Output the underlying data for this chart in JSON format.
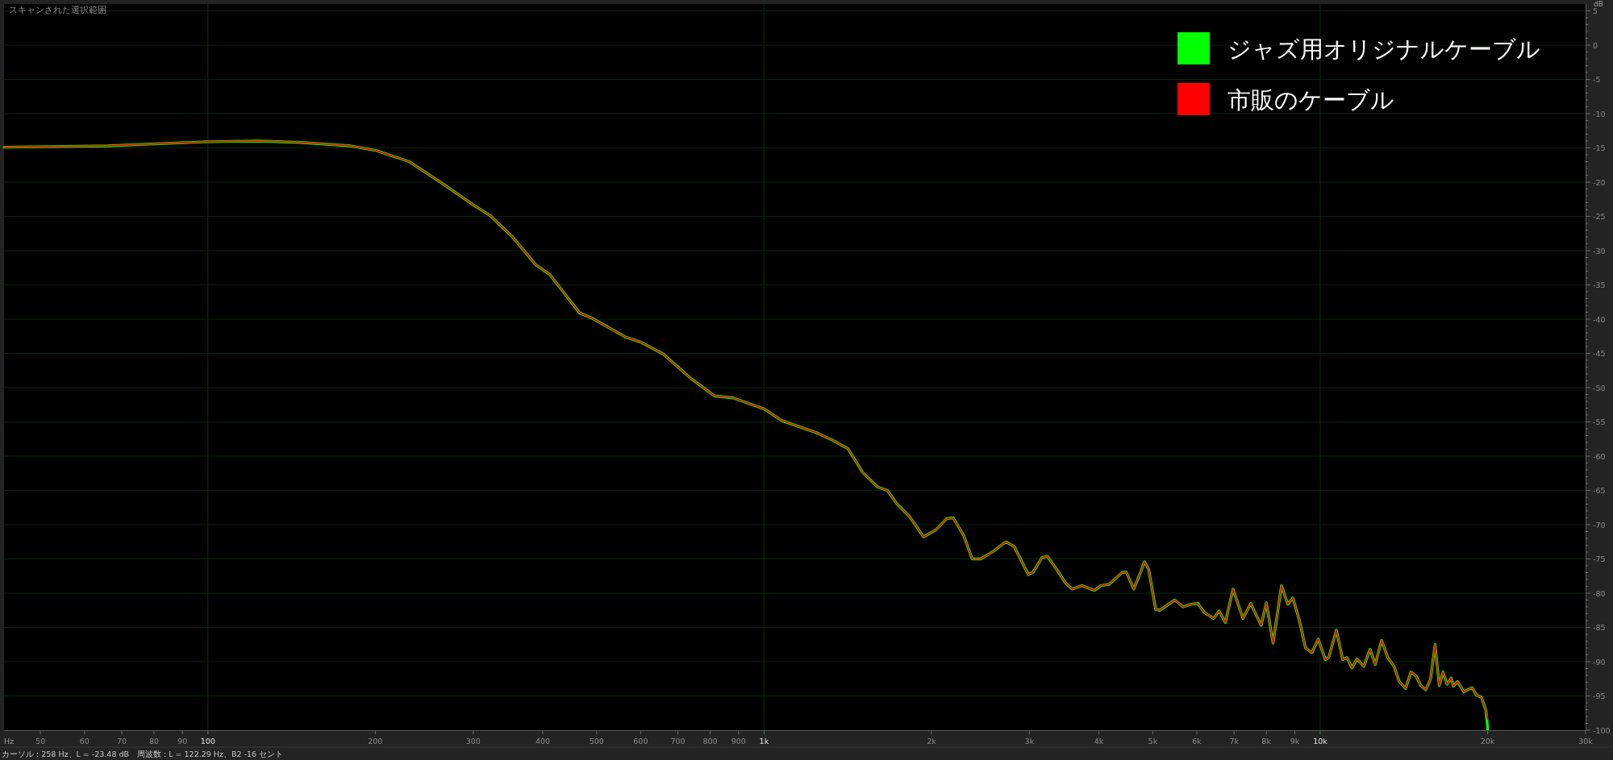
{
  "chart_data": {
    "type": "line",
    "title": "スキャンされた選択範囲",
    "xlabel": "Hz",
    "ylabel": "dB",
    "log": "x",
    "grid": true,
    "legend": "top right",
    "annotations": [
      "カーソル : 258 Hz、L = -23.48 dB　周波数 : L = 122.29 Hz、B2 -16 セント"
    ],
    "xlim": [
      43,
      30000
    ],
    "ylim": [
      -100,
      6
    ],
    "xticks": [
      50,
      60,
      70,
      80,
      90,
      100,
      200,
      300,
      400,
      500,
      600,
      700,
      800,
      900,
      {
        "value": 1000,
        "label": "1k"
      },
      {
        "value": 2000,
        "label": "2k"
      },
      {
        "value": 3000,
        "label": "3k"
      },
      {
        "value": 4000,
        "label": "4k"
      },
      {
        "value": 5000,
        "label": "5k"
      },
      {
        "value": 6000,
        "label": "6k"
      },
      {
        "value": 7000,
        "label": "7k"
      },
      {
        "value": 8000,
        "label": "8k"
      },
      {
        "value": 9000,
        "label": "9k"
      },
      {
        "value": 10000,
        "label": "10k"
      },
      {
        "value": 20000,
        "label": "20k"
      },
      {
        "value": 30000,
        "label": "30k"
      }
    ],
    "yticks": [
      -100,
      {
        "value": -99,
        "label": null
      },
      {
        "value": -98,
        "label": null
      },
      {
        "value": -97,
        "label": null
      },
      {
        "value": -96,
        "label": null
      },
      -95,
      {
        "value": -94,
        "label": null
      },
      {
        "value": -93,
        "label": null
      },
      {
        "value": -92,
        "label": null
      },
      {
        "value": -91,
        "label": null
      },
      -90,
      {
        "value": -89,
        "label": null
      },
      {
        "value": -88,
        "label": null
      },
      {
        "value": -87,
        "label": null
      },
      {
        "value": -86,
        "label": null
      },
      -85,
      {
        "value": -84,
        "label": null
      },
      {
        "value": -83,
        "label": null
      },
      {
        "value": -82,
        "label": null
      },
      {
        "value": -81,
        "label": null
      },
      -80,
      {
        "value": -79,
        "label": null
      },
      {
        "value": -78,
        "label": null
      },
      {
        "value": -77,
        "label": null
      },
      {
        "value": -76,
        "label": null
      },
      -75,
      {
        "value": -74,
        "label": null
      },
      {
        "value": -73,
        "label": null
      },
      {
        "value": -72,
        "label": null
      },
      {
        "value": -71,
        "label": null
      },
      -70,
      {
        "value": -69,
        "label": null
      },
      {
        "value": -68,
        "label": null
      },
      {
        "value": -67,
        "label": null
      },
      {
        "value": -66,
        "label": null
      },
      -65,
      {
        "value": -64,
        "label": null
      },
      {
        "value": -63,
        "label": null
      },
      {
        "value": -62,
        "label": null
      },
      {
        "value": -61,
        "label": null
      },
      -60,
      {
        "value": -59,
        "label": null
      },
      {
        "value": -58,
        "label": null
      },
      {
        "value": -57,
        "label": null
      },
      {
        "value": -56,
        "label": null
      },
      -55,
      {
        "value": -54,
        "label": null
      },
      {
        "value": -53,
        "label": null
      },
      {
        "value": -52,
        "label": null
      },
      {
        "value": -51,
        "label": null
      },
      -50,
      {
        "value": -49,
        "label": null
      },
      {
        "value": -48,
        "label": null
      },
      {
        "value": -47,
        "label": null
      },
      {
        "value": -46,
        "label": null
      },
      -45,
      {
        "value": -44,
        "label": null
      },
      {
        "value": -43,
        "label": null
      },
      {
        "value": -42,
        "label": null
      },
      {
        "value": -41,
        "label": null
      },
      -40,
      {
        "value": -39,
        "label": null
      },
      {
        "value": -38,
        "label": null
      },
      {
        "value": -37,
        "label": null
      },
      {
        "value": -36,
        "label": null
      },
      -35,
      {
        "value": -34,
        "label": null
      },
      {
        "value": -33,
        "label": null
      },
      {
        "value": -32,
        "label": null
      },
      {
        "value": -31,
        "label": null
      },
      -30,
      {
        "value": -29,
        "label": null
      },
      {
        "value": -28,
        "label": null
      },
      {
        "value": -27,
        "label": null
      },
      {
        "value": -26,
        "label": null
      },
      -25,
      {
        "value": -24,
        "label": null
      },
      {
        "value": -23,
        "label": null
      },
      {
        "value": -22,
        "label": null
      },
      {
        "value": -21,
        "label": null
      },
      -20,
      {
        "value": -19,
        "label": null
      },
      {
        "value": -18,
        "label": null
      },
      {
        "value": -17,
        "label": null
      },
      {
        "value": -16,
        "label": null
      },
      -15,
      {
        "value": -14,
        "label": null
      },
      {
        "value": -13,
        "label": null
      },
      {
        "value": -12,
        "label": null
      },
      {
        "value": -11,
        "label": null
      },
      -10,
      {
        "value": -9,
        "label": null
      },
      {
        "value": -8,
        "label": null
      },
      {
        "value": -7,
        "label": null
      },
      {
        "value": -6,
        "label": null
      },
      -5,
      {
        "value": -4,
        "label": null
      },
      {
        "value": -3,
        "label": null
      },
      {
        "value": -2,
        "label": null
      },
      {
        "value": -1,
        "label": null
      },
      0,
      {
        "value": 1,
        "label": null
      },
      {
        "value": 2,
        "label": null
      },
      {
        "value": 3,
        "label": null
      },
      {
        "value": 4,
        "label": null
      },
      5
    ],
    "x": [
      43,
      66,
      100,
      123,
      147,
      180,
      201,
      230,
      263,
      301,
      322,
      352,
      389,
      412,
      466,
      492,
      563,
      602,
      659,
      737,
      814,
      880,
      1000,
      1076,
      1245,
      1331,
      1415,
      1505,
      1600,
      1666,
      1735,
      1821,
      1870,
      1936,
      2041,
      2131,
      2188,
      2286,
      2367,
      2452,
      2583,
      2722,
      2818,
      2987,
      3050,
      3158,
      3230,
      3357,
      3476,
      3581,
      3728,
      3929,
      4033,
      4175,
      4401,
      4478,
      4622,
      4761,
      4829,
      4914,
      5062,
      5150,
      5475,
      5669,
      5871,
      6026,
      6186,
      6431,
      6578,
      6752,
      6969,
      7264,
      7498,
      7834,
      8000,
      8227,
      8519,
      8744,
      8932,
      9169,
      9410,
      9660,
      9917,
      10217,
      10360,
      10690,
      10975,
      11170,
      11405,
      11645,
      11975,
      12295,
      12560,
      12890,
      13230,
      13580,
      13870,
      14240,
      14560,
      14870,
      15165,
      15480,
      15785,
      16090,
      16370,
      16630,
      16900,
      17200,
      17350,
      17650,
      18120,
      18760,
      19090,
      19500,
      19870,
      20010
    ],
    "series": [
      {
        "name": "ジャズ用オリジナルケーブル",
        "color": "#00ff00",
        "values": [
          -14.9,
          -14.7,
          -14.1,
          -14.0,
          -14.2,
          -14.7,
          -15.4,
          -17.0,
          -20.1,
          -23.4,
          -24.9,
          -27.9,
          -32.1,
          -33.5,
          -39.1,
          -39.9,
          -42.6,
          -43.4,
          -45.1,
          -48.6,
          -51.2,
          -51.5,
          -53.1,
          -54.8,
          -56.6,
          -57.7,
          -58.9,
          -62.4,
          -64.5,
          -65.0,
          -67.0,
          -68.7,
          -70.0,
          -71.8,
          -70.7,
          -69.1,
          -69.0,
          -71.6,
          -75.0,
          -75.0,
          -73.9,
          -72.5,
          -73.2,
          -77.3,
          -76.9,
          -74.8,
          -74.6,
          -76.5,
          -78.4,
          -79.4,
          -78.9,
          -79.6,
          -78.9,
          -78.7,
          -77.0,
          -76.9,
          -79.4,
          -76.8,
          -75.4,
          -76.5,
          -82.4,
          -82.5,
          -81.0,
          -82.0,
          -81.6,
          -81.5,
          -82.8,
          -83.7,
          -82.6,
          -84.3,
          -79.4,
          -83.7,
          -81.5,
          -84.7,
          -81.4,
          -87.3,
          -78.9,
          -81.6,
          -80.7,
          -83.9,
          -88.0,
          -88.7,
          -86.7,
          -89.7,
          -89.4,
          -85.4,
          -89.7,
          -89.4,
          -90.9,
          -89.6,
          -90.7,
          -88.2,
          -90.4,
          -86.9,
          -89.4,
          -90.7,
          -92.9,
          -93.9,
          -91.5,
          -92.1,
          -93.5,
          -94.1,
          -92.6,
          -87.5,
          -93.5,
          -91.5,
          -93.3,
          -92.4,
          -93.6,
          -92.9,
          -94.4,
          -93.8,
          -94.9,
          -95.2,
          -97.2,
          -99.9
        ]
      },
      {
        "name": "市販のケーブル",
        "color": "#ff0000",
        "values": [
          -14.9,
          -14.7,
          -14.1,
          -14.0,
          -14.2,
          -14.7,
          -15.4,
          -17.0,
          -20.1,
          -23.4,
          -24.9,
          -27.9,
          -32.1,
          -33.5,
          -39.1,
          -39.9,
          -42.6,
          -43.4,
          -45.1,
          -48.6,
          -51.2,
          -51.5,
          -53.1,
          -54.8,
          -56.6,
          -57.7,
          -58.9,
          -62.4,
          -64.5,
          -65.0,
          -67.0,
          -68.7,
          -70.0,
          -71.8,
          -70.7,
          -69.1,
          -69.0,
          -71.6,
          -75.0,
          -75.0,
          -73.9,
          -72.5,
          -73.2,
          -77.3,
          -76.9,
          -74.8,
          -74.6,
          -76.5,
          -78.4,
          -79.4,
          -78.9,
          -79.6,
          -78.9,
          -78.7,
          -77.0,
          -76.9,
          -79.4,
          -76.8,
          -75.4,
          -76.5,
          -82.4,
          -82.5,
          -81.0,
          -82.0,
          -81.6,
          -81.5,
          -82.8,
          -83.7,
          -82.6,
          -84.3,
          -79.4,
          -83.7,
          -81.5,
          -84.7,
          -81.4,
          -87.3,
          -78.9,
          -81.6,
          -80.7,
          -83.9,
          -88.0,
          -88.7,
          -86.7,
          -89.7,
          -89.4,
          -85.4,
          -89.7,
          -89.4,
          -90.9,
          -89.6,
          -90.7,
          -88.2,
          -90.4,
          -86.9,
          -89.4,
          -90.7,
          -92.9,
          -93.9,
          -91.5,
          -92.1,
          -93.5,
          -94.1,
          -92.6,
          -87.5,
          -93.5,
          -91.5,
          -93.3,
          -92.4,
          -93.6,
          -92.9,
          -94.4,
          -93.8,
          -94.9,
          -95.2,
          -97.2,
          -98.4
        ]
      }
    ]
  }
}
